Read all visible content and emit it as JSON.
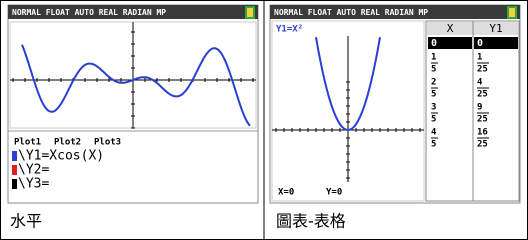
{
  "panels": [
    {
      "status": "NORMAL FLOAT AUTO REAL RADIAN MP",
      "plots": [
        "Plot1",
        "Plot2",
        "Plot3"
      ],
      "equations": [
        "\\Y1=Xcos(X)",
        "\\Y2=",
        "\\Y3="
      ],
      "caption": "水平"
    },
    {
      "status": "NORMAL FLOAT AUTO REAL RADIAN MP",
      "graph_label": "Y1=X²",
      "trace_x": "X=0",
      "trace_y": "Y=0",
      "table": {
        "header": [
          "X",
          "Y1"
        ],
        "rows": [
          [
            "0",
            "0"
          ],
          [
            {
              "num": "1",
              "den": "5"
            },
            {
              "num": "1",
              "den": "25"
            }
          ],
          [
            {
              "num": "2",
              "den": "5"
            },
            {
              "num": "4",
              "den": "25"
            }
          ],
          [
            {
              "num": "3",
              "den": "5"
            },
            {
              "num": "9",
              "den": "25"
            }
          ],
          [
            {
              "num": "4",
              "den": "5"
            },
            {
              "num": "16",
              "den": "25"
            }
          ]
        ]
      },
      "caption": "圖表-表格"
    }
  ]
}
